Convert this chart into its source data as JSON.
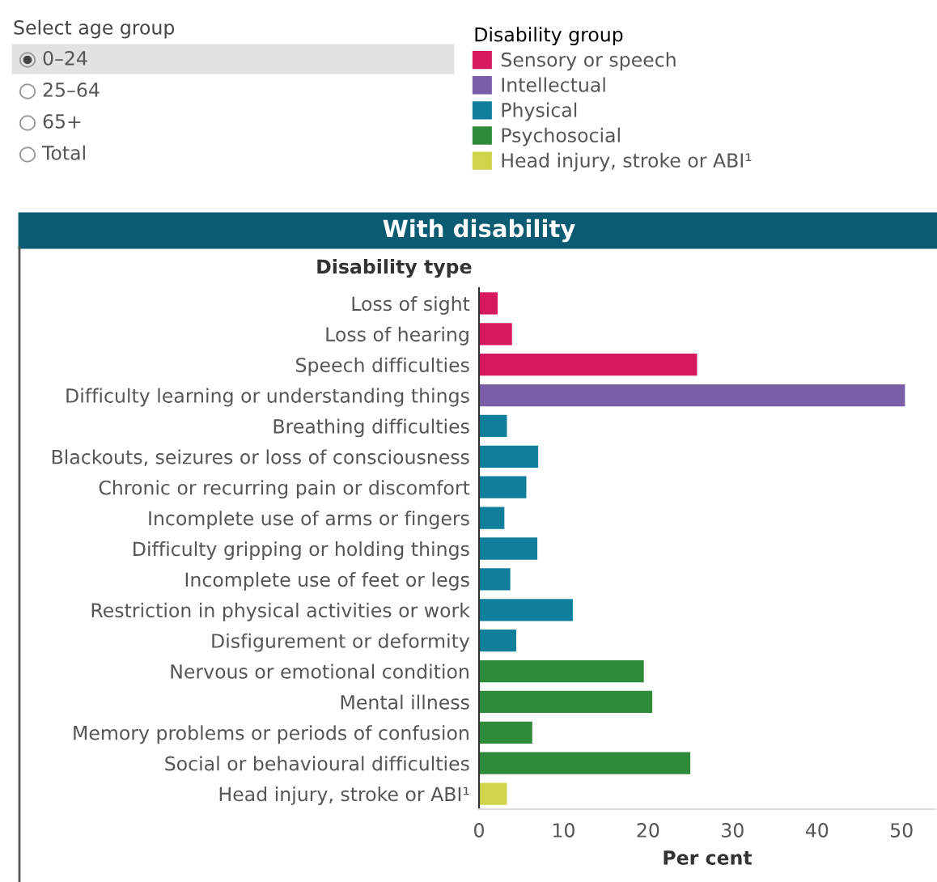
{
  "chart_data": {
    "type": "bar",
    "orientation": "horizontal",
    "title": "With disability",
    "ylabel": "Disability type",
    "xlabel": "Per cent",
    "legend_title": "Disability group",
    "legend": "top left",
    "annotations": [
      "Select age group",
      "0–24",
      "25–64",
      "65+",
      "Total"
    ],
    "categories": [
      "Loss of sight",
      "Loss of hearing",
      "Speech difficulties",
      "Difficulty learning or understanding things",
      "Breathing difficulties",
      "Blackouts, seizures or loss of consciousness",
      "Chronic or recurring pain or discomfort",
      "Incomplete use of arms or fingers",
      "Difficulty gripping or holding things",
      "Incomplete use of feet or legs",
      "Restriction in physical activities or work",
      "Disfigurement or deformity",
      "Nervous or emotional condition",
      "Mental illness",
      "Memory problems or periods of confusion",
      "Social or behavioural difficulties",
      "Head injury, stroke or ABI¹"
    ],
    "series": [
      {
        "name": "Sensory or speech",
        "color": "#d6195f",
        "values": [
          2.2,
          3.9,
          25.8,
          null,
          null,
          null,
          null,
          null,
          null,
          null,
          null,
          null,
          null,
          null,
          null,
          null,
          null
        ]
      },
      {
        "name": "Intellectual",
        "color": "#7b5ea8",
        "values": [
          null,
          null,
          null,
          50.4,
          null,
          null,
          null,
          null,
          null,
          null,
          null,
          null,
          null,
          null,
          null,
          null,
          null
        ]
      },
      {
        "name": "Physical",
        "color": "#0f7f9b",
        "values": [
          null,
          null,
          null,
          null,
          3.3,
          7.0,
          5.6,
          3.0,
          6.9,
          3.7,
          11.1,
          4.4,
          null,
          null,
          null,
          null,
          null
        ]
      },
      {
        "name": "Psychosocial",
        "color": "#2e8b3a",
        "values": [
          null,
          null,
          null,
          null,
          null,
          null,
          null,
          null,
          null,
          null,
          null,
          null,
          19.5,
          20.5,
          6.3,
          25.0,
          null
        ]
      },
      {
        "name": "Head injury, stroke or ABI¹",
        "color": "#cfd44a",
        "values": [
          null,
          null,
          null,
          null,
          null,
          null,
          null,
          null,
          null,
          null,
          null,
          null,
          null,
          null,
          null,
          null,
          3.3
        ]
      }
    ],
    "xlim": [
      0,
      54
    ],
    "xticks": [
      0,
      10,
      20,
      30,
      40,
      50
    ]
  }
}
